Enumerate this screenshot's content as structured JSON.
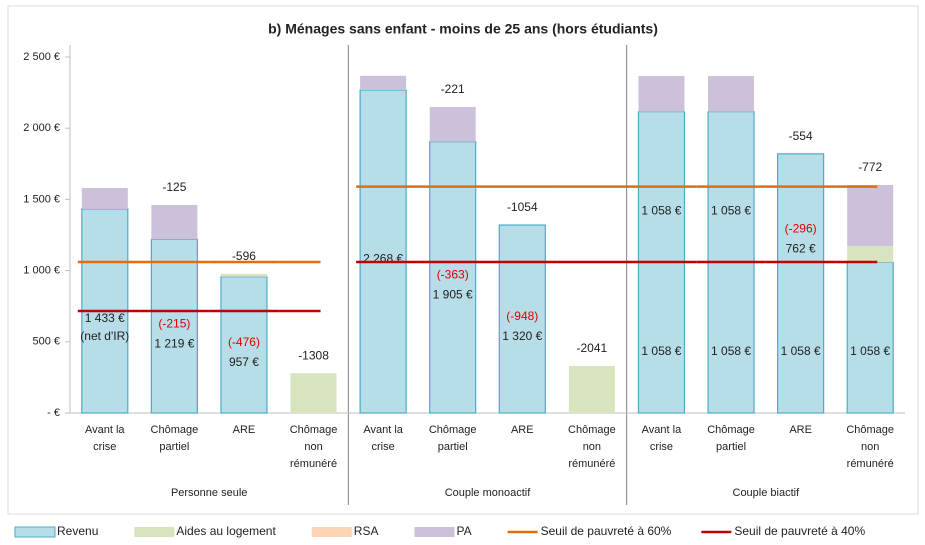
{
  "chart_data": {
    "type": "stacked-bar",
    "title": "b) Ménages sans enfant - moins de 25 ans (hors étudiants)",
    "categories": [
      "Avant la\ncrise",
      "Chômage\npartiel",
      "ARE",
      "Chômage\nnon\nrémunéré",
      "Avant la\ncrise",
      "Chômage\npartiel",
      "ARE",
      "Chômage\nnon\nrémunéré",
      "Avant la\ncrise",
      "Chômage\npartiel",
      "ARE",
      "Chômage\nnon\nrémunéré"
    ],
    "groups": [
      "Personne seule",
      "Couple monoactif",
      "Couple biactif"
    ],
    "series": [
      {
        "name": "Revenu",
        "color": "#b7dde8",
        "values": [
          1433,
          1219,
          957,
          null,
          2268,
          1905,
          1320,
          null,
          2116,
          2116,
          1820,
          1058
        ]
      },
      {
        "name": "Aides au logement",
        "color": "#d7e4bd",
        "values": [
          null,
          null,
          20,
          280,
          null,
          null,
          null,
          330,
          null,
          null,
          null,
          115
        ]
      },
      {
        "name": "RSA",
        "color": "#fbd5b5",
        "values": [
          null,
          null,
          null,
          null,
          null,
          null,
          null,
          null,
          null,
          null,
          null,
          null
        ]
      },
      {
        "name": "PA",
        "color": "#ccc0da",
        "values": [
          147,
          242,
          null,
          null,
          100,
          244,
          null,
          null,
          250,
          250,
          null,
          428
        ]
      }
    ],
    "lines": [
      {
        "name": "Seuil de pauvreté à 60%",
        "color": "#e46c0a",
        "values": [
          1060,
          1060,
          1060,
          1060,
          1590,
          1590,
          1590,
          1590,
          1590,
          1590,
          1590,
          1590
        ]
      },
      {
        "name": "Seuil de pauvreté à 40%",
        "color": "#c00000",
        "values": [
          716,
          716,
          716,
          716,
          1060,
          1060,
          1060,
          1060,
          1060,
          1060,
          1060,
          1060
        ]
      }
    ],
    "diff_labels": [
      null,
      "-125",
      "-596",
      "-1308",
      null,
      "-221",
      "-1054",
      "-2041",
      null,
      null,
      "-554",
      "-772"
    ],
    "loss_labels": [
      null,
      "(-215)",
      "(-476)",
      null,
      null,
      "(-363)",
      "(-948)",
      null,
      null,
      null,
      "(-296)",
      null
    ],
    "amount_labels": [
      "1 433 €",
      "1 219 €",
      "957 €",
      null,
      "2 268 €",
      "1 905 €",
      "1 320 €",
      null,
      "1 058 €",
      "1 058 €",
      "762 €",
      null
    ],
    "amount_notes": [
      "(net d'IR)",
      null,
      null,
      null,
      null,
      null,
      null,
      null,
      null,
      null,
      null,
      null
    ],
    "lower_labels": [
      null,
      null,
      null,
      null,
      null,
      null,
      null,
      null,
      "1 058 €",
      "1 058 €",
      "1 058 €",
      "1 058 €"
    ],
    "ylim": [
      0,
      2500
    ],
    "yticks": [
      {
        "value": 0,
        "label": "-  €"
      },
      {
        "value": 500,
        "label": "500 €"
      },
      {
        "value": 1000,
        "label": "1 000 €"
      },
      {
        "value": 1500,
        "label": "1 500 €"
      },
      {
        "value": 2000,
        "label": "2 000 €"
      },
      {
        "value": 2500,
        "label": "2 500 €"
      }
    ]
  }
}
